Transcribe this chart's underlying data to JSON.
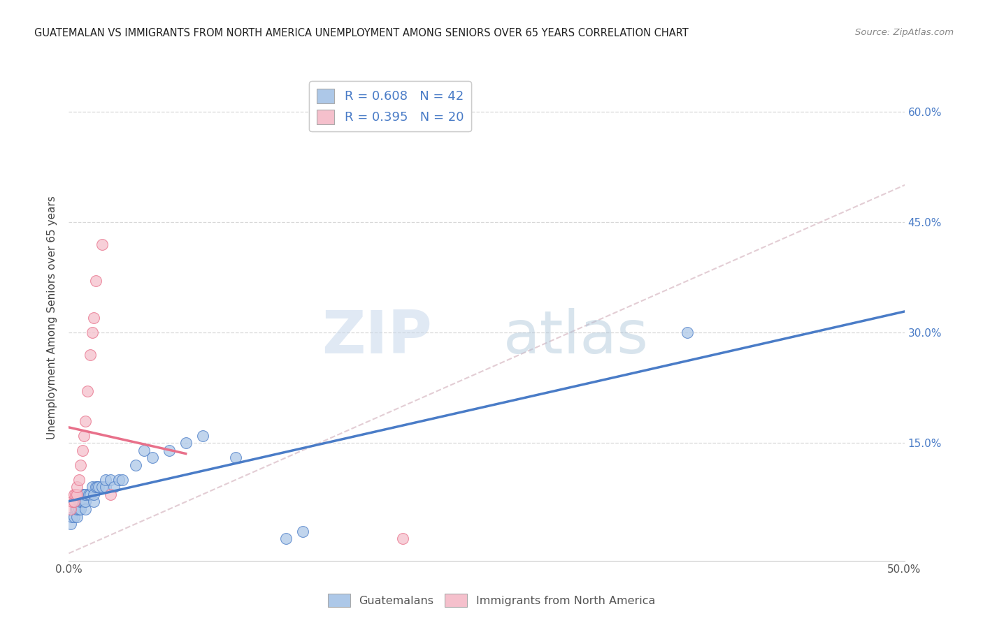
{
  "title": "GUATEMALAN VS IMMIGRANTS FROM NORTH AMERICA UNEMPLOYMENT AMONG SENIORS OVER 65 YEARS CORRELATION CHART",
  "source": "Source: ZipAtlas.com",
  "ylabel": "Unemployment Among Seniors over 65 years",
  "xlim": [
    0.0,
    0.5
  ],
  "ylim": [
    -0.01,
    0.65
  ],
  "xtick_labels": [
    "0.0%",
    "",
    "",
    "",
    "",
    "50.0%"
  ],
  "xtick_vals": [
    0.0,
    0.1,
    0.2,
    0.3,
    0.4,
    0.5
  ],
  "ytick_labels": [
    "15.0%",
    "30.0%",
    "45.0%",
    "60.0%"
  ],
  "ytick_vals": [
    0.15,
    0.3,
    0.45,
    0.6
  ],
  "blue_r": 0.608,
  "blue_n": 42,
  "pink_r": 0.395,
  "pink_n": 20,
  "blue_color": "#adc8e8",
  "blue_line_color": "#4a7cc7",
  "pink_color": "#f5c0cc",
  "pink_line_color": "#e8708a",
  "diagonal_color": "#e0c8d0",
  "watermark_zip": "ZIP",
  "watermark_atlas": "atlas",
  "blue_x": [
    0.001,
    0.002,
    0.003,
    0.004,
    0.005,
    0.005,
    0.006,
    0.006,
    0.007,
    0.007,
    0.008,
    0.008,
    0.009,
    0.009,
    0.01,
    0.01,
    0.01,
    0.012,
    0.013,
    0.014,
    0.015,
    0.015,
    0.016,
    0.017,
    0.018,
    0.02,
    0.022,
    0.022,
    0.025,
    0.027,
    0.03,
    0.032,
    0.04,
    0.045,
    0.05,
    0.06,
    0.07,
    0.08,
    0.1,
    0.13,
    0.14,
    0.37
  ],
  "blue_y": [
    0.04,
    0.05,
    0.05,
    0.06,
    0.05,
    0.06,
    0.06,
    0.07,
    0.06,
    0.07,
    0.07,
    0.08,
    0.07,
    0.08,
    0.06,
    0.07,
    0.08,
    0.08,
    0.08,
    0.09,
    0.07,
    0.08,
    0.09,
    0.09,
    0.09,
    0.09,
    0.09,
    0.1,
    0.1,
    0.09,
    0.1,
    0.1,
    0.12,
    0.14,
    0.13,
    0.14,
    0.15,
    0.16,
    0.13,
    0.02,
    0.03,
    0.3
  ],
  "pink_x": [
    0.001,
    0.002,
    0.003,
    0.003,
    0.004,
    0.005,
    0.005,
    0.006,
    0.007,
    0.008,
    0.009,
    0.01,
    0.011,
    0.013,
    0.014,
    0.015,
    0.016,
    0.02,
    0.025,
    0.2
  ],
  "pink_y": [
    0.06,
    0.07,
    0.07,
    0.08,
    0.08,
    0.08,
    0.09,
    0.1,
    0.12,
    0.14,
    0.16,
    0.18,
    0.22,
    0.27,
    0.3,
    0.32,
    0.37,
    0.42,
    0.08,
    0.02
  ],
  "background_color": "#ffffff",
  "grid_color": "#d8d8d8"
}
